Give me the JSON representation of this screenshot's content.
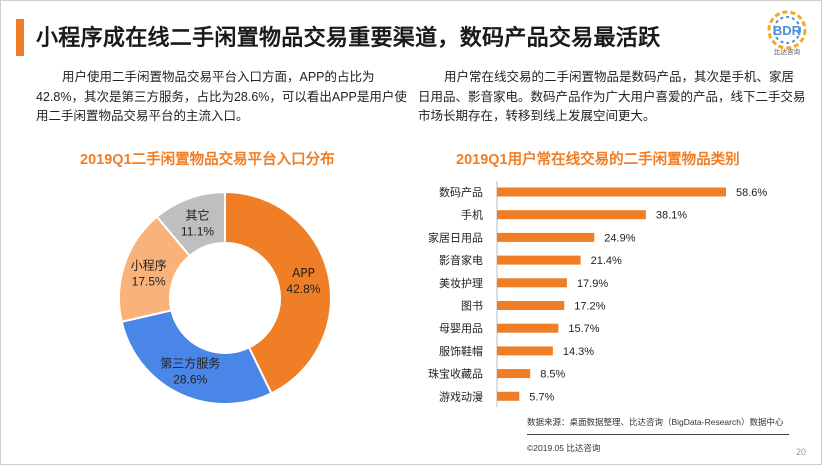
{
  "page": {
    "title": "小程序成在线二手闲置物品交易重要渠道，数码产品交易最活跃",
    "para_left": "用户使用二手闲置物品交易平台入口方面，APP的占比为42.8%，其次是第三方服务，占比为28.6%，可以看出APP是用户使用二手闲置物品交易平台的主流入口。",
    "para_right": "用户常在线交易的二手闲置物品是数码产品，其次是手机、家居日用品、影音家电。数码产品作为广大用户喜爱的产品，线下二手交易市场长期存在，转移到线上发展空间更大。",
    "source": "数据来源：桌面数据整理、比达咨询（BigData-Research）数据中心",
    "copyright": "©2019.05 比达咨询",
    "page_number": "20"
  },
  "logo": {
    "text": "BDR",
    "subtext": "比达咨询",
    "colors": [
      "#e94b3c",
      "#f6a623",
      "#4a90d9",
      "#7ac142",
      "#9b59b6"
    ]
  },
  "chart_data": [
    {
      "type": "pie",
      "donut": true,
      "title": "2019Q1二手闲置物品交易平台入口分布",
      "unit": "%",
      "slices": [
        {
          "label": "APP",
          "value": 42.8,
          "color": "#f07e26"
        },
        {
          "label": "第三方服务",
          "value": 28.6,
          "color": "#4a86e8"
        },
        {
          "label": "小程序",
          "value": 17.5,
          "color": "#f9b37a"
        },
        {
          "label": "其它",
          "value": 11.1,
          "color": "#bfbfbf"
        }
      ]
    },
    {
      "type": "bar",
      "orientation": "horizontal",
      "title": "2019Q1用户常在线交易的二手闲置物品类别",
      "unit": "%",
      "color": "#f07e26",
      "xlim": [
        0,
        58.6
      ],
      "categories": [
        "数码产品",
        "手机",
        "家居日用品",
        "影音家电",
        "美妆护理",
        "图书",
        "母婴用品",
        "服饰鞋帽",
        "珠宝收藏品",
        "游戏动漫"
      ],
      "values": [
        58.6,
        38.1,
        24.9,
        21.4,
        17.9,
        17.2,
        15.7,
        14.3,
        8.5,
        5.7
      ]
    }
  ]
}
